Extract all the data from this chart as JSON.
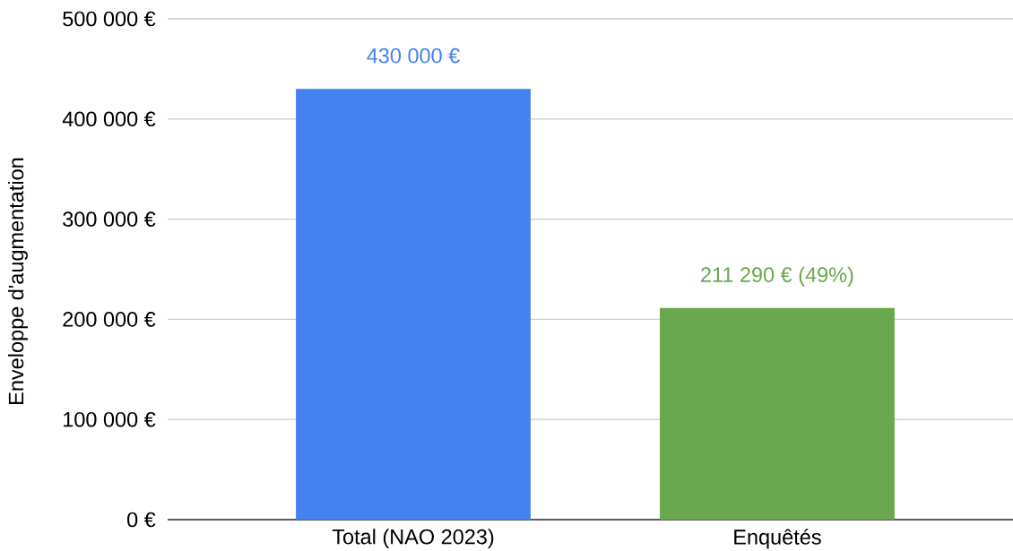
{
  "chart_data": {
    "type": "bar",
    "ylabel": "Enveloppe d'augmentation",
    "categories": [
      "Total (NAO 2023)",
      "Enquêtés"
    ],
    "values": [
      430000,
      211290
    ],
    "colors": [
      "#4482f0",
      "#6aa84f"
    ],
    "value_labels": [
      "430 000 €",
      "211 290 € (49%)"
    ],
    "ylim": [
      0,
      500000
    ],
    "yticks": [
      {
        "value": 0,
        "label": "0 €"
      },
      {
        "value": 100000,
        "label": "100 000 €"
      },
      {
        "value": 200000,
        "label": "200 000 €"
      },
      {
        "value": 300000,
        "label": "300 000 €"
      },
      {
        "value": 400000,
        "label": "400 000 €"
      },
      {
        "value": 500000,
        "label": "500 000 €"
      }
    ],
    "grid": "y"
  }
}
